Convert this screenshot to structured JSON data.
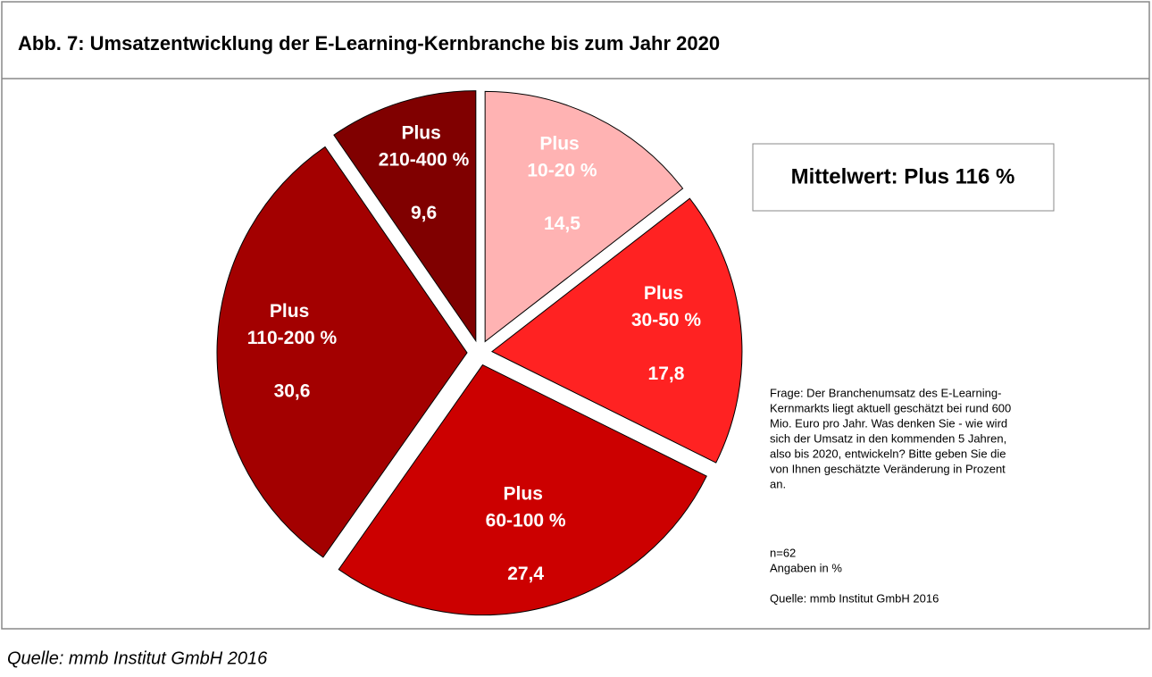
{
  "chart_data": {
    "type": "pie",
    "title": "Abb. 7: Umsatzentwicklung der E-Learning-Kernbranche bis zum Jahr 2020",
    "categories": [
      "Plus 10-20 %",
      "Plus 30-50 %",
      "Plus 60-100 %",
      "Plus 110-200 %",
      "Plus 210-400 %"
    ],
    "values": [
      14.5,
      17.8,
      27.4,
      30.6,
      9.6
    ],
    "value_labels": [
      "14,5",
      "17,8",
      "27,4",
      "30,6",
      "9,6"
    ],
    "colors": [
      "#ffb3b3",
      "#ff2222",
      "#cc0000",
      "#a30000",
      "#800000"
    ],
    "annotation": "Mittelwert:  Plus 116 %",
    "note_lines": [
      "Frage: Der Branchenumsatz des E-Learning-",
      "Kernmarkts liegt aktuell geschätzt bei rund 600",
      "Mio. Euro pro Jahr. Was denken Sie - wie wird",
      "sich der Umsatz in den kommenden 5 Jahren,",
      "also bis 2020, entwickeln? Bitte geben Sie die",
      "von Ihnen geschätzte Veränderung  in Prozent",
      "an."
    ],
    "sample": "n=62",
    "unit_note": "Angaben in %",
    "inner_source": "Quelle: mmb Institut GmbH 2016",
    "source": "Quelle: mmb Institut GmbH 2016"
  }
}
